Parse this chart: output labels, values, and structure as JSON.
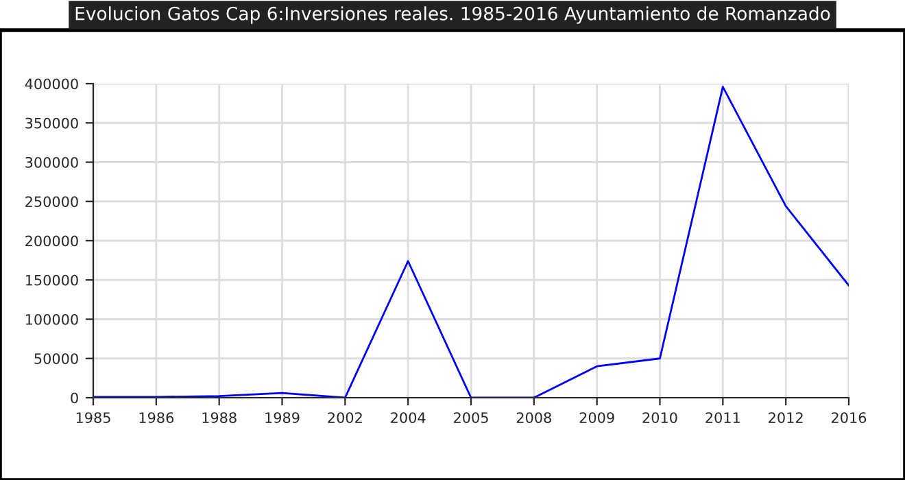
{
  "chart_data": {
    "type": "line",
    "title": "Evolucion Gatos Cap 6:Inversiones reales. 1985-2016 Ayuntamiento de Romanzado",
    "categories": [
      "1985",
      "1986",
      "1988",
      "1989",
      "2002",
      "2004",
      "2005",
      "2008",
      "2009",
      "2010",
      "2011",
      "2012",
      "2016"
    ],
    "series": [
      {
        "color": "#0000ff",
        "values": [
          1000,
          1000,
          2000,
          6000,
          0,
          174000,
          0,
          0,
          40000,
          50000,
          396000,
          244000,
          143000
        ]
      }
    ],
    "ylim": [
      0,
      400000
    ],
    "yticks": [
      0,
      50000,
      100000,
      150000,
      200000,
      250000,
      300000,
      350000,
      400000
    ],
    "grid": true,
    "marker": "none",
    "line_style": "solid"
  }
}
